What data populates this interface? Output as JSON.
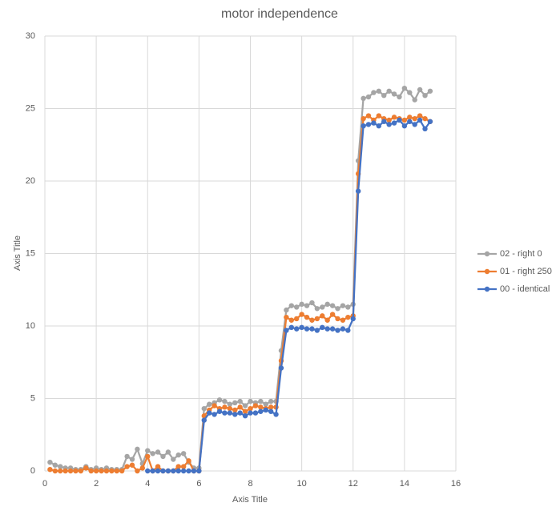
{
  "chart_data": {
    "type": "line",
    "title": "motor independence",
    "xlabel": "Axis Title",
    "ylabel": "Axis Title",
    "x": [
      0.2,
      0.4,
      0.6,
      0.8,
      1.0,
      1.2,
      1.4,
      1.6,
      1.8,
      2.0,
      2.2,
      2.4,
      2.6,
      2.8,
      3.0,
      3.2,
      3.4,
      3.6,
      3.8,
      4.0,
      4.2,
      4.4,
      4.6,
      4.8,
      5.0,
      5.2,
      5.4,
      5.6,
      5.8,
      6.0,
      6.2,
      6.4,
      6.6,
      6.8,
      7.0,
      7.2,
      7.4,
      7.6,
      7.8,
      8.0,
      8.2,
      8.4,
      8.6,
      8.8,
      9.0,
      9.2,
      9.4,
      9.6,
      9.8,
      10.0,
      10.2,
      10.4,
      10.6,
      10.8,
      11.0,
      11.2,
      11.4,
      11.6,
      11.8,
      12.0,
      12.2,
      12.4,
      12.6,
      12.8,
      13.0,
      13.2,
      13.4,
      13.6,
      13.8,
      14.0,
      14.2,
      14.4,
      14.6,
      14.8,
      15.0
    ],
    "series": [
      {
        "name": "02 - right 0",
        "color": "#a5a5a5",
        "values": [
          0.6,
          0.4,
          0.3,
          0.2,
          0.2,
          0.1,
          0.1,
          0.3,
          0.1,
          0.2,
          0.1,
          0.2,
          0.1,
          0.1,
          0.1,
          1.0,
          0.8,
          1.5,
          0.5,
          1.4,
          1.2,
          1.3,
          1.0,
          1.3,
          0.8,
          1.1,
          1.2,
          0.6,
          0.2,
          0.2,
          4.3,
          4.6,
          4.7,
          4.9,
          4.8,
          4.6,
          4.7,
          4.8,
          4.5,
          4.8,
          4.7,
          4.8,
          4.6,
          4.8,
          4.8,
          8.3,
          11.1,
          11.4,
          11.3,
          11.5,
          11.4,
          11.6,
          11.2,
          11.3,
          11.5,
          11.4,
          11.2,
          11.4,
          11.3,
          11.5,
          21.4,
          25.7,
          25.8,
          26.1,
          26.2,
          25.9,
          26.2,
          26.0,
          25.8,
          26.4,
          26.1,
          25.6,
          26.3,
          25.9,
          26.2
        ]
      },
      {
        "name": "01 - right 250",
        "color": "#ed7d31",
        "values": [
          0.1,
          0,
          0,
          0,
          0,
          0,
          0,
          0.2,
          0,
          0,
          0,
          0,
          0,
          0,
          0,
          0.3,
          0.4,
          0,
          0.2,
          1.0,
          0,
          0.3,
          0,
          0,
          0,
          0.3,
          0.3,
          0.7,
          0,
          0,
          3.8,
          4.2,
          4.5,
          4.3,
          4.4,
          4.3,
          4.2,
          4.4,
          4.1,
          4.3,
          4.5,
          4.4,
          4.3,
          4.4,
          4.4,
          7.6,
          10.6,
          10.4,
          10.5,
          10.8,
          10.6,
          10.4,
          10.5,
          10.7,
          10.4,
          10.8,
          10.5,
          10.4,
          10.6,
          10.7,
          20.5,
          24.3,
          24.5,
          24.2,
          24.5,
          24.3,
          24.2,
          24.4,
          24.3,
          24.2,
          24.4,
          24.3,
          24.5,
          24.3,
          24.1
        ]
      },
      {
        "name": "00 - identical",
        "color": "#4472c4",
        "values": [
          null,
          null,
          null,
          null,
          null,
          null,
          null,
          null,
          null,
          null,
          null,
          null,
          null,
          null,
          null,
          null,
          null,
          null,
          null,
          0,
          0,
          0,
          0,
          0,
          0,
          0,
          0,
          0,
          0,
          0,
          3.5,
          4.0,
          3.9,
          4.1,
          4.0,
          4.0,
          3.9,
          4.0,
          3.8,
          4.0,
          4.0,
          4.1,
          4.2,
          4.1,
          3.9,
          7.1,
          9.7,
          9.9,
          9.8,
          9.9,
          9.8,
          9.8,
          9.7,
          9.9,
          9.8,
          9.8,
          9.7,
          9.8,
          9.7,
          10.5,
          19.3,
          23.8,
          23.9,
          24.0,
          23.8,
          24.1,
          23.9,
          24.0,
          24.2,
          23.8,
          24.1,
          23.9,
          24.2,
          23.6,
          24.1
        ]
      }
    ],
    "xlim": [
      0,
      16
    ],
    "xticks": [
      0,
      2,
      4,
      6,
      8,
      10,
      12,
      14,
      16
    ],
    "ylim": [
      0,
      30
    ],
    "yticks": [
      0,
      5,
      10,
      15,
      20,
      25,
      30
    ],
    "grid": true,
    "legend": "right"
  }
}
